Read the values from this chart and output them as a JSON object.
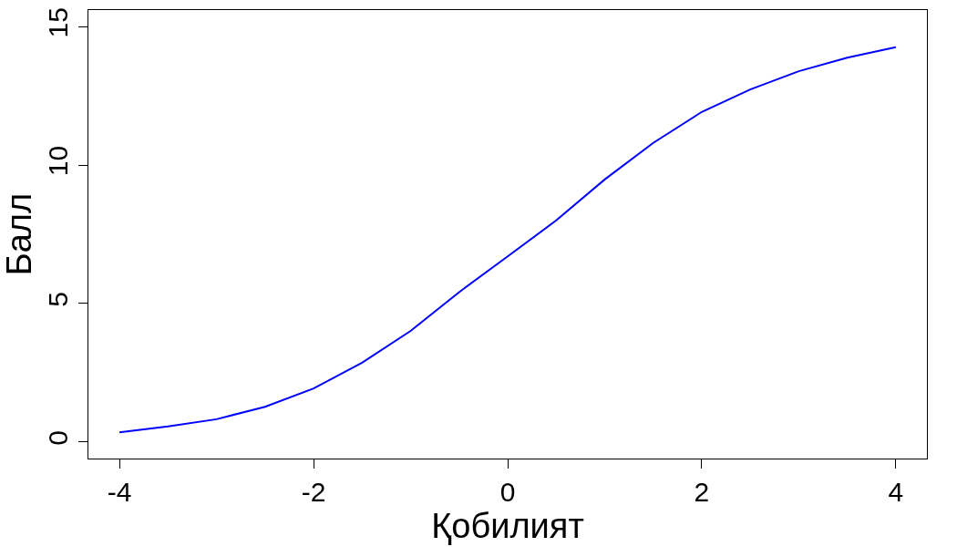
{
  "chart_data": {
    "type": "line",
    "xlabel": "Қобилият",
    "ylabel": "Балл",
    "x": [
      -4,
      -3.5,
      -3,
      -2.5,
      -2,
      -1.5,
      -1,
      -0.5,
      0,
      0.5,
      1,
      1.5,
      2,
      2.5,
      3,
      3.5,
      4
    ],
    "series": [
      {
        "color": "#0000ff",
        "values": [
          0.35,
          0.56,
          0.82,
          1.27,
          1.93,
          2.86,
          4.01,
          5.41,
          6.7,
          8.0,
          9.48,
          10.8,
          11.92,
          12.73,
          13.39,
          13.88,
          14.26
        ]
      }
    ],
    "xlim": [
      -4.32,
      4.32
    ],
    "xticks": [
      -4,
      -2,
      0,
      2,
      4
    ],
    "ylim": [
      -0.6,
      15.6
    ],
    "yticks": [
      0,
      5,
      10,
      15
    ],
    "grid": false,
    "marker": "none",
    "line_style": "solid"
  }
}
